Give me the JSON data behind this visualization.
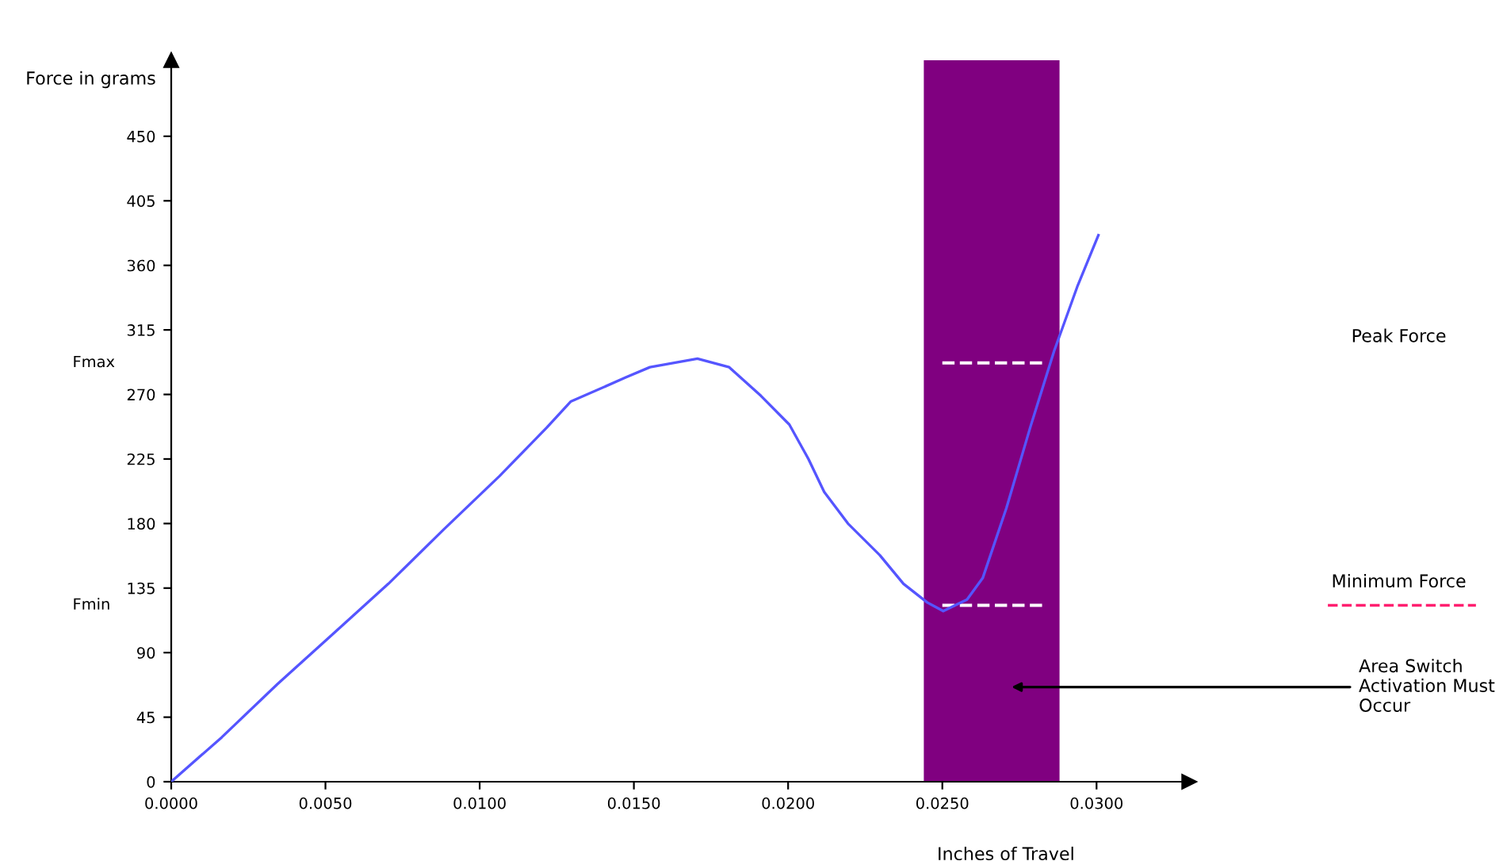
{
  "chart_data": {
    "type": "line",
    "xlabel": "Inches of Travel",
    "ylabel": "Force in grams",
    "x": [
      0,
      0.00164,
      0.00344,
      0.00524,
      0.00704,
      0.00884,
      0.01064,
      0.01218,
      0.01295,
      0.01475,
      0.01552,
      0.01706,
      0.01809,
      0.01912,
      0.02004,
      0.02066,
      0.02117,
      0.02194,
      0.02297,
      0.02374,
      0.02451,
      0.02503,
      0.0258,
      0.02631,
      0.02708,
      0.02785,
      0.02862,
      0.02939,
      0.03006
    ],
    "series": [
      {
        "color": "#5555ff",
        "values": [
          0,
          31,
          68,
          103,
          138,
          176,
          213,
          247,
          265,
          282,
          289,
          295,
          289,
          269,
          249,
          225,
          202,
          180,
          158,
          138,
          125,
          119,
          127,
          142,
          191,
          247,
          300,
          346,
          381
        ]
      }
    ],
    "xlim": [
      0,
      0.033
    ],
    "ylim": [
      0,
      503
    ],
    "xticks": [
      {
        "value": 0,
        "label": "0.0000"
      },
      {
        "value": 0.005,
        "label": "0.0050"
      },
      {
        "value": 0.01,
        "label": "0.0100"
      },
      {
        "value": 0.015,
        "label": "0.0150"
      },
      {
        "value": 0.02,
        "label": "0.0200"
      },
      {
        "value": 0.025,
        "label": "0.0250"
      },
      {
        "value": 0.03,
        "label": "0.0300"
      }
    ],
    "yticks": [
      0,
      45,
      90,
      135,
      180,
      225,
      270,
      315,
      360,
      405,
      450
    ],
    "bands": [
      {
        "axis": "x",
        "from": 0.0244,
        "to": 0.0288,
        "color": "#800080",
        "label": "Area Switch Activation Must Occur"
      }
    ],
    "ref_lines": [
      {
        "axis": "y",
        "value": 292,
        "color": "#ffffff",
        "line_style": "dashed"
      },
      {
        "axis": "y",
        "value": 123,
        "color": "#ffffff",
        "line_style": "dashed"
      }
    ],
    "annotations": [
      "Fmax",
      "Fmin",
      "Peak Force",
      "Minimum Force"
    ],
    "grid": false,
    "legend": false,
    "marker": "none",
    "line_style": "solid"
  }
}
